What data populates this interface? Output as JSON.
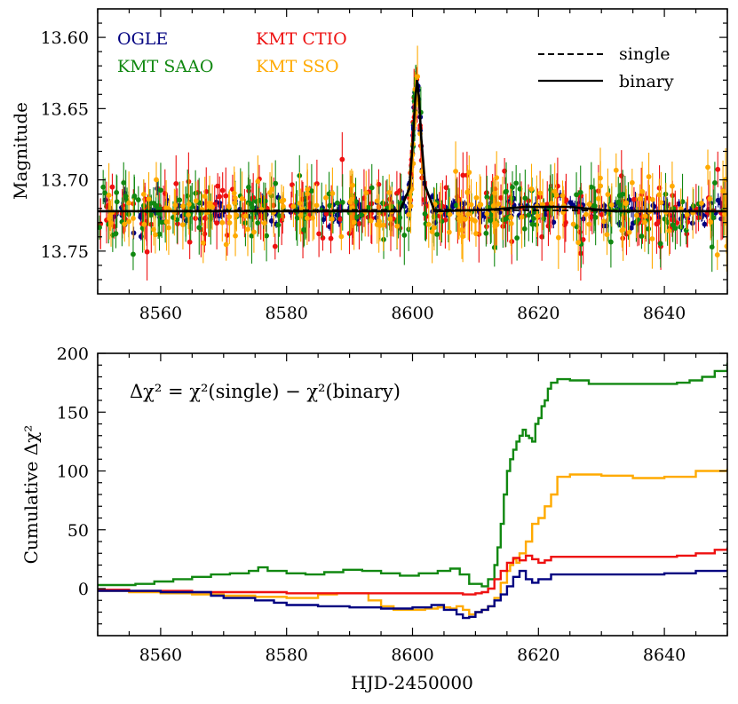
{
  "chart_data": [
    {
      "type": "scatter",
      "ylabel": "Magnitude",
      "xlim": [
        8550,
        8650
      ],
      "ylim": [
        13.78,
        13.58
      ],
      "x_ticks": [
        8560,
        8580,
        8600,
        8620,
        8640
      ],
      "x_tick_labels": [
        "8560",
        "8580",
        "8600",
        "8620",
        "8640"
      ],
      "y_ticks": [
        13.6,
        13.65,
        13.7,
        13.75
      ],
      "y_tick_labels": [
        "13.60",
        "13.65",
        "13.70",
        "13.75"
      ],
      "legend_observatories": [
        {
          "name": "OGLE",
          "color": "#000080"
        },
        {
          "name": "KMT CTIO",
          "color": "#ee1111"
        },
        {
          "name": "KMT SAAO",
          "color": "#118811"
        },
        {
          "name": "KMT SSO",
          "color": "#ffaa00"
        }
      ],
      "legend_models": [
        {
          "name": "single",
          "style": "dashed"
        },
        {
          "name": "binary",
          "style": "solid"
        }
      ],
      "baseline_magnitude": 13.722,
      "peak_time": 8600.7,
      "peak_magnitude": 13.63,
      "series": [
        {
          "name": "OGLE",
          "color": "#000080",
          "scatter_sigma": 0.005,
          "error_bar": 0.004,
          "count": 260,
          "seed": 11
        },
        {
          "name": "KMT CTIO",
          "color": "#ee1111",
          "scatter_sigma": 0.01,
          "error_bar": 0.014,
          "count": 230,
          "seed": 23
        },
        {
          "name": "KMT SAAO",
          "color": "#118811",
          "scatter_sigma": 0.01,
          "error_bar": 0.014,
          "count": 200,
          "seed": 37
        },
        {
          "name": "KMT SSO",
          "color": "#ffaa00",
          "scatter_sigma": 0.011,
          "error_bar": 0.015,
          "count": 200,
          "seed": 53
        }
      ],
      "models": [
        {
          "name": "single",
          "style": "dashed",
          "x": [
            8550,
            8598,
            8599.5,
            8600,
            8600.4,
            8600.7,
            8601,
            8601.4,
            8602,
            8603.5,
            8650
          ],
          "y": [
            13.722,
            13.721,
            13.705,
            13.675,
            13.645,
            13.63,
            13.642,
            13.672,
            13.705,
            13.721,
            13.722
          ]
        },
        {
          "name": "binary",
          "style": "solid",
          "x": [
            8550,
            8598,
            8599.5,
            8600,
            8600.4,
            8600.7,
            8601,
            8601.4,
            8602,
            8603.5,
            8612,
            8618,
            8625,
            8632,
            8650
          ],
          "y": [
            13.722,
            13.722,
            13.706,
            13.676,
            13.646,
            13.63,
            13.641,
            13.671,
            13.704,
            13.722,
            13.721,
            13.719,
            13.719,
            13.722,
            13.722
          ]
        }
      ]
    },
    {
      "type": "line",
      "xlabel": "HJD-2450000",
      "ylabel": "Cumulative Δχ²",
      "annotation": "Δχ² = χ²(single) − χ²(binary)",
      "xlim": [
        8550,
        8650
      ],
      "ylim": [
        -40,
        200
      ],
      "x_ticks": [
        8560,
        8580,
        8600,
        8620,
        8640
      ],
      "x_tick_labels": [
        "8560",
        "8580",
        "8600",
        "8620",
        "8640"
      ],
      "y_ticks": [
        0,
        50,
        100,
        150,
        200
      ],
      "y_tick_labels": [
        "0",
        "50",
        "100",
        "150",
        "200"
      ],
      "series": [
        {
          "name": "KMT SAAO",
          "color": "#118811",
          "x": [
            8550,
            8553,
            8556,
            8559,
            8562,
            8565,
            8568,
            8571,
            8574,
            8575.5,
            8577,
            8580,
            8583,
            8586,
            8589,
            8592,
            8595,
            8598,
            8601,
            8604,
            8606,
            8607.5,
            8609,
            8611,
            8612,
            8613,
            8613.5,
            8614,
            8614.5,
            8615,
            8615.5,
            8616,
            8616.5,
            8617,
            8617.5,
            8618,
            8618.5,
            8619,
            8619.5,
            8620,
            8620.5,
            8621,
            8621.5,
            8622,
            8623,
            8625,
            8628,
            8632,
            8636,
            8640,
            8642,
            8644,
            8646,
            8648,
            8650
          ],
          "y": [
            3,
            3,
            4,
            6,
            8,
            10,
            12,
            13,
            15,
            18,
            15,
            13,
            12,
            14,
            16,
            15,
            13,
            11,
            13,
            15,
            17,
            12,
            4,
            2,
            8,
            20,
            35,
            55,
            80,
            100,
            110,
            118,
            125,
            130,
            135,
            130,
            128,
            125,
            140,
            145,
            155,
            160,
            170,
            175,
            178,
            177,
            174,
            174,
            174,
            174,
            175,
            177,
            180,
            185,
            192
          ]
        },
        {
          "name": "KMT SSO",
          "color": "#ffaa00",
          "x": [
            8550,
            8555,
            8560,
            8565,
            8570,
            8575,
            8580,
            8585,
            8588,
            8590,
            8593,
            8595,
            8597,
            8599,
            8602,
            8604,
            8606,
            8607,
            8608,
            8609,
            8610,
            8611,
            8612,
            8613,
            8614,
            8615,
            8615.5,
            8616,
            8616.5,
            8617,
            8618,
            8619,
            8620,
            8621,
            8622,
            8623,
            8625,
            8630,
            8635,
            8640,
            8645,
            8650
          ],
          "y": [
            -2,
            -3,
            -4,
            -5,
            -6,
            -7,
            -8,
            -5,
            -4,
            -4,
            -10,
            -15,
            -18,
            -18,
            -17,
            -16,
            -17,
            -15,
            -18,
            -22,
            -20,
            -18,
            -15,
            -8,
            5,
            15,
            20,
            25,
            22,
            30,
            40,
            55,
            60,
            70,
            80,
            95,
            97,
            96,
            94,
            95,
            100,
            102
          ]
        },
        {
          "name": "KMT CTIO",
          "color": "#ee1111",
          "x": [
            8550,
            8555,
            8560,
            8565,
            8570,
            8575,
            8580,
            8585,
            8590,
            8595,
            8600,
            8605,
            8608,
            8610,
            8611,
            8612,
            8613,
            8614,
            8615,
            8616,
            8617,
            8618,
            8619,
            8620,
            8621,
            8622,
            8625,
            8630,
            8635,
            8640,
            8642,
            8645,
            8648,
            8650
          ],
          "y": [
            -1,
            -2,
            -2,
            -3,
            -3,
            -3,
            -4,
            -4,
            -4,
            -4,
            -4,
            -4,
            -5,
            -4,
            -3,
            0,
            8,
            15,
            22,
            26,
            24,
            28,
            25,
            22,
            24,
            27,
            27,
            27,
            27,
            27,
            28,
            30,
            33,
            35
          ]
        },
        {
          "name": "OGLE",
          "color": "#000080",
          "x": [
            8550,
            8555,
            8560,
            8565,
            8568,
            8570,
            8575,
            8578,
            8580,
            8585,
            8590,
            8595,
            8600,
            8603,
            8605,
            8607,
            8608,
            8609,
            8610,
            8611,
            8612,
            8613,
            8614,
            8615,
            8616,
            8617,
            8618,
            8619,
            8620,
            8622,
            8625,
            8630,
            8635,
            8640,
            8645,
            8650
          ],
          "y": [
            -2,
            -2,
            -3,
            -3,
            -6,
            -8,
            -10,
            -12,
            -14,
            -15,
            -16,
            -17,
            -16,
            -14,
            -18,
            -22,
            -25,
            -24,
            -20,
            -18,
            -15,
            -10,
            -5,
            2,
            10,
            15,
            8,
            5,
            8,
            12,
            12,
            12,
            12,
            13,
            15,
            16
          ]
        }
      ]
    }
  ]
}
